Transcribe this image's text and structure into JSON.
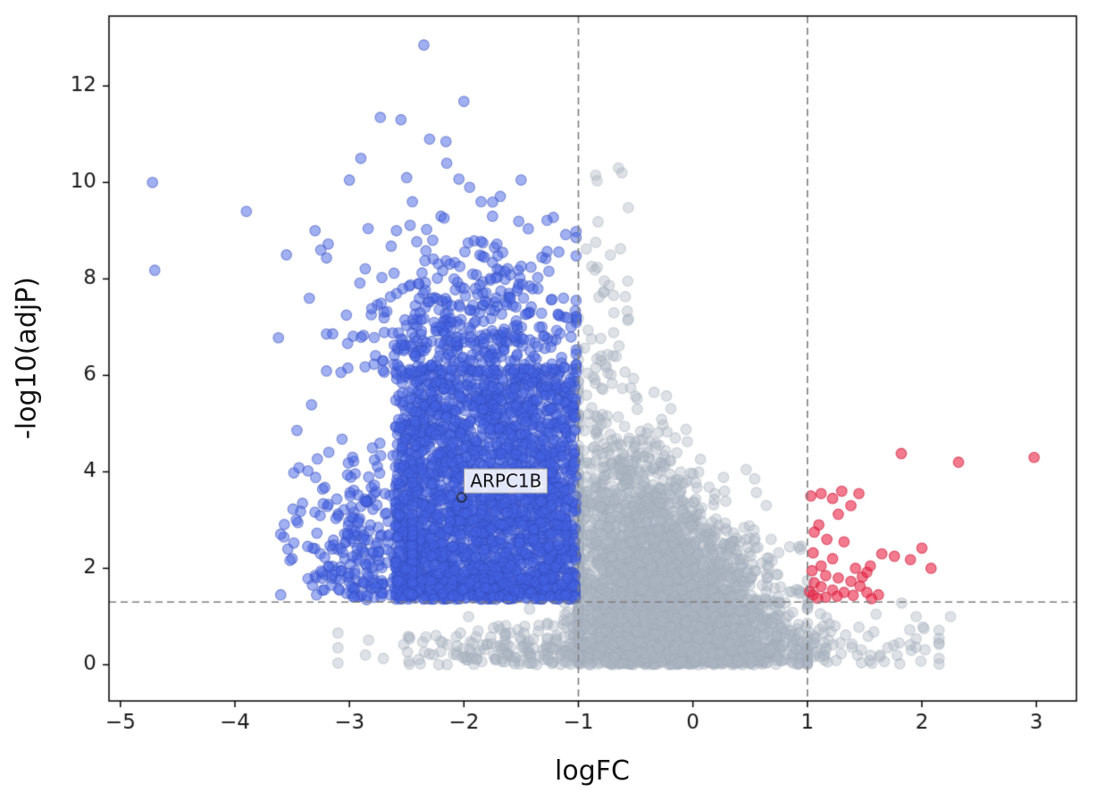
{
  "figure": {
    "background": "#ffffff"
  },
  "chart_data": {
    "type": "scatter",
    "title": "",
    "xlabel": "logFC",
    "ylabel": "-log10(adjP)",
    "xlim": [
      -5.1,
      3.35
    ],
    "ylim": [
      -0.75,
      13.45
    ],
    "xticks": [
      -5,
      -4,
      -3,
      -2,
      -1,
      0,
      1,
      2,
      3
    ],
    "xtick_labels": [
      "−5",
      "−4",
      "−3",
      "−2",
      "−1",
      "0",
      "1",
      "2",
      "3"
    ],
    "yticks": [
      0,
      2,
      4,
      6,
      8,
      10,
      12
    ],
    "ytick_labels": [
      "0",
      "2",
      "4",
      "6",
      "8",
      "10",
      "12"
    ],
    "grid": false,
    "legend": "none",
    "seed": 7,
    "thresholds": {
      "vlines": [
        -1,
        1
      ],
      "hline": 1.301,
      "style": "dashed",
      "color": "#7f7f7f"
    },
    "annotations": [
      {
        "text": "ARPC1B",
        "label_x": -2.0,
        "label_y": 3.78,
        "marker_x": -2.02,
        "marker_y": 3.47
      }
    ],
    "series": [
      {
        "name": "not-significant",
        "fill": "rgba(173,183,196,0.4)",
        "edge": "rgba(160,170,184,0.45)",
        "radius": 5.8,
        "points": [
          [
            1.6,
            1.05
          ],
          [
            1.95,
            1.0
          ],
          [
            2.25,
            1.0
          ],
          [
            -0.62,
            10.2
          ],
          [
            -0.85,
            10.15
          ]
        ],
        "clusters": [
          {
            "kind": "funnel",
            "count": 3500,
            "y_scale": 2.0,
            "y_max": 7.3,
            "x_center": 0.0,
            "x_slope": -0.14,
            "x_spread": 0.5,
            "x_spread_slope": -0.045,
            "x_spread_min": 0.1,
            "x_clip": [
              -1.0,
              1.0
            ]
          },
          {
            "kind": "band",
            "count": 700,
            "x_mean": -0.35,
            "x_sd": 1.05,
            "x_clip": [
              -3.1,
              2.15
            ],
            "y_scale": 0.5,
            "y_max": 1.28
          },
          {
            "kind": "boxu",
            "count": 28,
            "x0": -0.95,
            "x1": -0.55,
            "y0": 6.4,
            "y1": 10.3
          },
          {
            "kind": "boxu",
            "count": 25,
            "x0": 0.2,
            "x1": 0.95,
            "y0": 1.35,
            "y1": 2.6
          }
        ]
      },
      {
        "name": "down-significant",
        "fill": "rgba(68,98,227,0.5)",
        "edge": "rgba(54,78,190,0.55)",
        "radius": 5.8,
        "points": [
          [
            -4.72,
            10.0
          ],
          [
            -4.7,
            8.18
          ],
          [
            -3.9,
            9.4
          ],
          [
            -3.62,
            6.78
          ],
          [
            -3.55,
            8.5
          ],
          [
            -3.3,
            9.0
          ],
          [
            -3.35,
            7.6
          ],
          [
            -2.35,
            12.85
          ],
          [
            -2.0,
            11.68
          ],
          [
            -2.73,
            11.35
          ],
          [
            -2.55,
            11.3
          ],
          [
            -2.3,
            10.9
          ],
          [
            -2.9,
            10.5
          ],
          [
            -2.5,
            10.1
          ],
          [
            -3.0,
            10.05
          ],
          [
            -2.15,
            10.4
          ],
          [
            -1.95,
            9.9
          ],
          [
            -2.45,
            9.6
          ],
          [
            -2.2,
            9.3
          ],
          [
            -1.85,
            9.6
          ],
          [
            -1.75,
            9.3
          ],
          [
            -3.25,
            8.6
          ],
          [
            -3.45,
            2.95
          ],
          [
            -3.5,
            2.2
          ],
          [
            -3.3,
            1.85
          ],
          [
            -3.6,
            1.45
          ],
          [
            -2.85,
            1.35
          ],
          [
            -2.95,
            1.6
          ],
          [
            -2.9,
            1.42
          ],
          [
            -3.15,
            2.4
          ]
        ],
        "clusters": [
          {
            "kind": "boxp",
            "count": 2600,
            "x0": -2.6,
            "x1": -1.02,
            "y0": 1.36,
            "y1": 6.15,
            "p": 1.3
          },
          {
            "kind": "normhalf",
            "count": 280,
            "x_mean": -2.8,
            "x_sd": 0.33,
            "x_clip": [
              -3.6,
              -2.45
            ],
            "y_base": 1.36,
            "y_scale": 1.5,
            "y_max": 6.2
          },
          {
            "kind": "normhalf",
            "count": 420,
            "x_mean": -1.9,
            "x_sd": 0.5,
            "x_clip": [
              -3.2,
              -1.02
            ],
            "y_base": 6.05,
            "y_scale": 1.35,
            "y_max": 11.9
          }
        ]
      },
      {
        "name": "up-significant",
        "fill": "rgba(235,35,70,0.6)",
        "edge": "rgba(205,25,55,0.65)",
        "radius": 5.8,
        "points": [
          [
            1.03,
            3.5
          ],
          [
            1.12,
            3.55
          ],
          [
            1.22,
            3.45
          ],
          [
            1.3,
            3.6
          ],
          [
            1.38,
            3.3
          ],
          [
            1.27,
            3.12
          ],
          [
            1.45,
            3.55
          ],
          [
            1.1,
            2.9
          ],
          [
            1.06,
            2.75
          ],
          [
            1.17,
            2.6
          ],
          [
            1.32,
            2.55
          ],
          [
            1.05,
            2.32
          ],
          [
            1.22,
            2.2
          ],
          [
            1.12,
            2.05
          ],
          [
            1.04,
            1.95
          ],
          [
            1.16,
            1.85
          ],
          [
            1.27,
            1.8
          ],
          [
            1.38,
            1.73
          ],
          [
            1.48,
            1.82
          ],
          [
            1.52,
            1.92
          ],
          [
            1.42,
            2.0
          ],
          [
            1.06,
            1.7
          ],
          [
            1.12,
            1.62
          ],
          [
            1.22,
            1.55
          ],
          [
            1.32,
            1.5
          ],
          [
            1.05,
            1.45
          ],
          [
            1.16,
            1.4
          ],
          [
            1.26,
            1.42
          ],
          [
            1.4,
            1.44
          ],
          [
            1.52,
            1.5
          ],
          [
            1.62,
            1.45
          ],
          [
            1.46,
            1.63
          ],
          [
            1.02,
            1.52
          ],
          [
            1.09,
            1.38
          ],
          [
            1.56,
            1.37
          ],
          [
            1.65,
            2.3
          ],
          [
            1.76,
            2.25
          ],
          [
            1.9,
            2.18
          ],
          [
            2.0,
            2.42
          ],
          [
            2.08,
            2.0
          ],
          [
            1.82,
            4.38
          ],
          [
            2.32,
            4.2
          ],
          [
            2.98,
            4.3
          ],
          [
            1.55,
            2.05
          ]
        ],
        "clusters": []
      }
    ]
  }
}
